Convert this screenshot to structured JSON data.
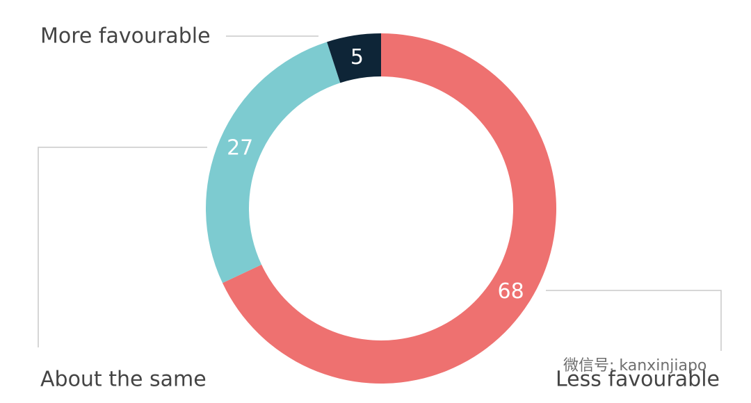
{
  "chart_data": {
    "type": "donut",
    "categories": [
      "Less favourable",
      "About the same",
      "More favourable"
    ],
    "values": [
      68,
      27,
      5
    ],
    "colors": [
      "#ee7170",
      "#7dcbd0",
      "#0e2537"
    ]
  },
  "watermark": "微信号: kanxinjiapo"
}
